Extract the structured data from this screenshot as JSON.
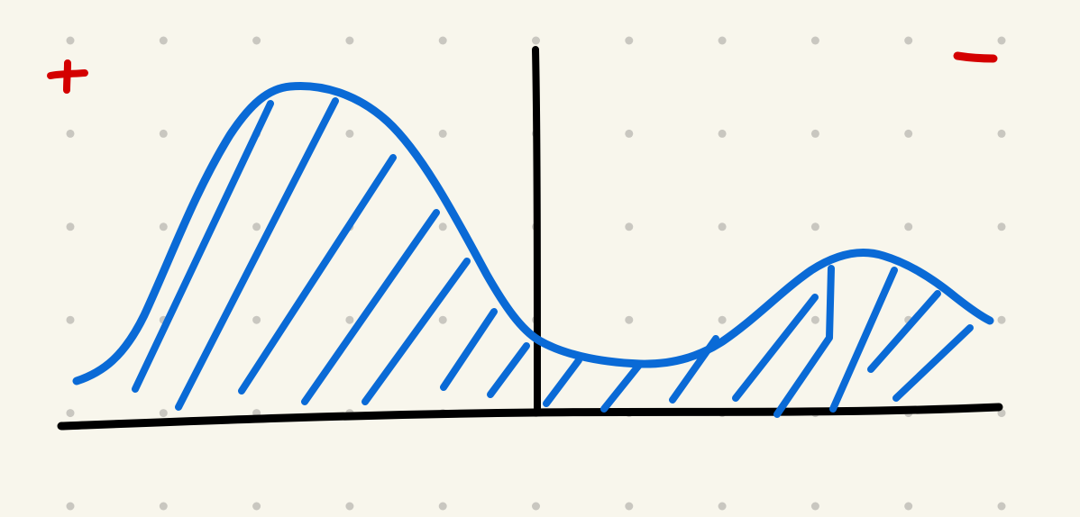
{
  "canvas": {
    "background_color": "#f8f6ec",
    "dot_grid_color": "#c9c7c0"
  },
  "annotations": {
    "plus_sign": {
      "symbol": "+",
      "color": "#d40000"
    },
    "minus_sign": {
      "symbol": "−",
      "color": "#d40000"
    }
  },
  "drawing": {
    "axis_color": "#000000",
    "curve_color": "#0a6ad6",
    "hatch_color": "#0a6ad6"
  }
}
